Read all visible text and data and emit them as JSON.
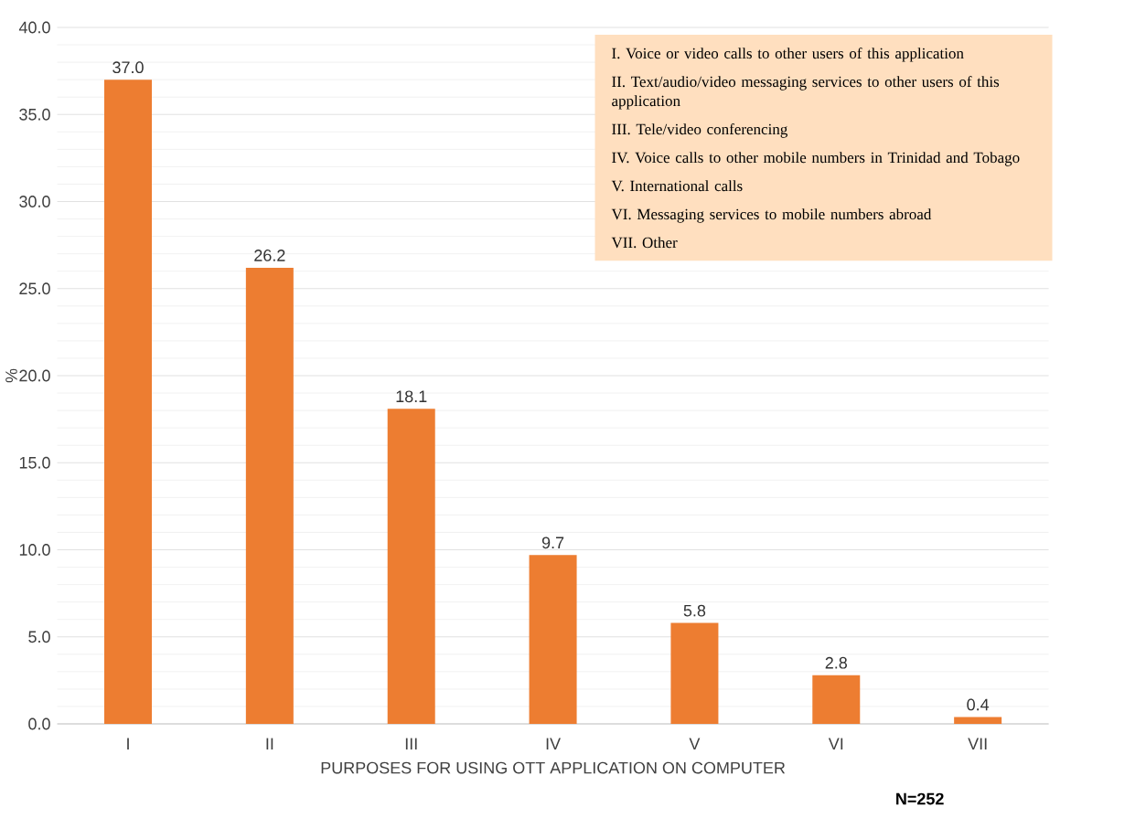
{
  "chart_data": {
    "type": "bar",
    "xlabel": "PURPOSES FOR USING OTT APPLICATION ON COMPUTER",
    "ylabel": "%",
    "categories": [
      "I",
      "II",
      "III",
      "IV",
      "V",
      "VI",
      "VII"
    ],
    "values": [
      37.0,
      26.2,
      18.1,
      9.7,
      5.8,
      2.8,
      0.4
    ],
    "value_labels": [
      "37.0",
      "26.2",
      "18.1",
      "9.7",
      "5.8",
      "2.8",
      "0.4"
    ],
    "color": "#ed7d31",
    "ylim": [
      0,
      40
    ],
    "yticks": [
      {
        "value": 0,
        "label": "0.0"
      },
      {
        "value": 5,
        "label": "5.0"
      },
      {
        "value": 10,
        "label": "10.0"
      },
      {
        "value": 15,
        "label": "15.0"
      },
      {
        "value": 20,
        "label": "20.0"
      },
      {
        "value": 25,
        "label": "25.0"
      },
      {
        "value": 30,
        "label": "30.0"
      },
      {
        "value": 35,
        "label": "35.0"
      },
      {
        "value": 40,
        "label": "40.0"
      }
    ],
    "grid": "y",
    "annotations": [
      "I. Voice or video calls to other users of this application",
      "II. Text/audio/video messaging services to other users of this application",
      "III. Tele/video conferencing",
      "IV. Voice calls to other mobile numbers in Trinidad and Tobago",
      "V. International calls",
      "VI. Messaging services to mobile numbers abroad",
      "VII. Other",
      "N=252"
    ]
  }
}
